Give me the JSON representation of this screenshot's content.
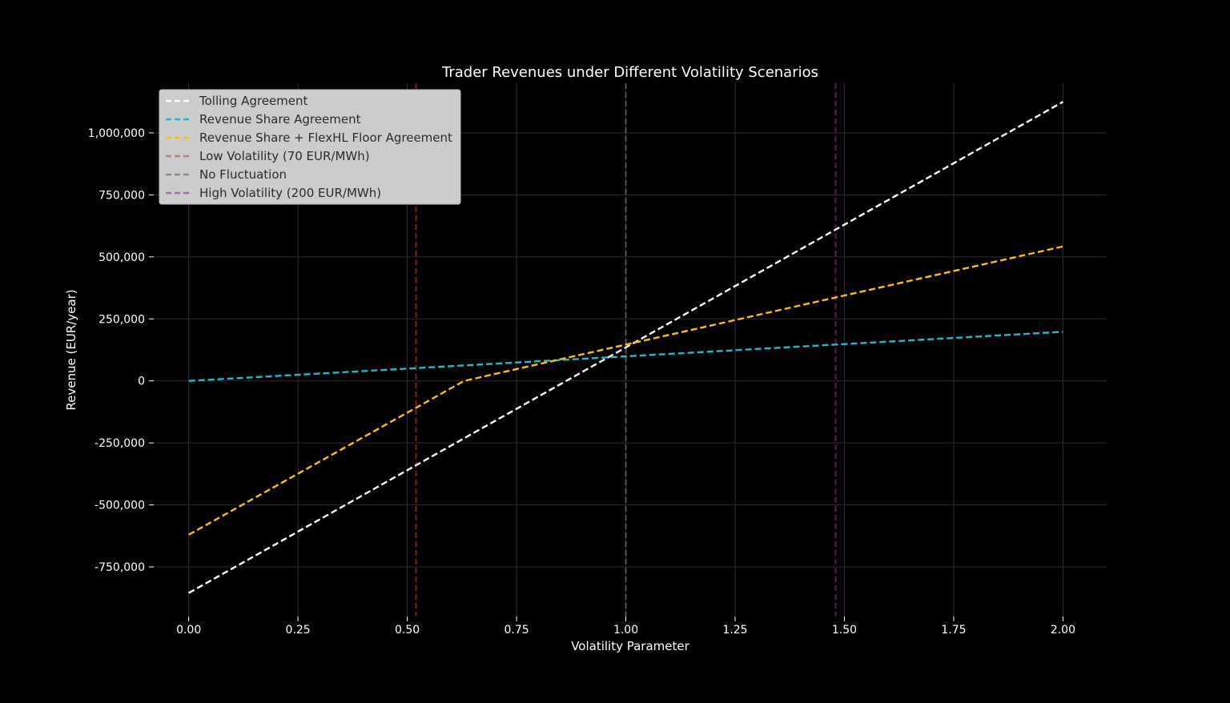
{
  "chart_data": {
    "type": "line",
    "title": "Trader Revenues under Different Volatility Scenarios",
    "xlabel": "Volatility Parameter",
    "ylabel": "Revenue (EUR/year)",
    "xlim": [
      -0.08,
      2.1
    ],
    "ylim": [
      -950000,
      1200000
    ],
    "xticks": [
      0.0,
      0.25,
      0.5,
      0.75,
      1.0,
      1.25,
      1.5,
      1.75,
      2.0
    ],
    "xtick_labels": [
      "0.00",
      "0.25",
      "0.50",
      "0.75",
      "1.00",
      "1.25",
      "1.50",
      "1.75",
      "2.00"
    ],
    "yticks": [
      -750000,
      -500000,
      -250000,
      0,
      250000,
      500000,
      750000,
      1000000
    ],
    "ytick_labels": [
      "-750,000",
      "-500,000",
      "-250,000",
      "0",
      "250,000",
      "500,000",
      "750,000",
      "1,000,000"
    ],
    "grid": true,
    "legend_position": "top-left",
    "series": [
      {
        "name": "Tolling Agreement",
        "color": "#ffffff",
        "x": [
          0.0,
          2.0
        ],
        "y": [
          -855000,
          1125000
        ]
      },
      {
        "name": "Revenue Share Agreement",
        "color": "#17becf",
        "x": [
          0.0,
          2.0
        ],
        "y": [
          0,
          198000
        ]
      },
      {
        "name": "Revenue Share + FlexHL Floor Agreement",
        "color": "#ffc000",
        "x": [
          0.0,
          0.63,
          2.0
        ],
        "y": [
          -620000,
          0,
          542000
        ]
      }
    ],
    "vertical_lines": [
      {
        "name": "Low Volatility (70 EUR/MWh)",
        "color": "#8b1a1a",
        "legend_color": "#b87f7f",
        "x": 0.52
      },
      {
        "name": "No Fluctuation",
        "color": "#555555",
        "legend_color": "#8a8a8a",
        "x": 1.0
      },
      {
        "name": "High Volatility (200 EUR/MWh)",
        "color": "#5a1a5a",
        "legend_color": "#a86aa8",
        "x": 1.48
      }
    ]
  }
}
